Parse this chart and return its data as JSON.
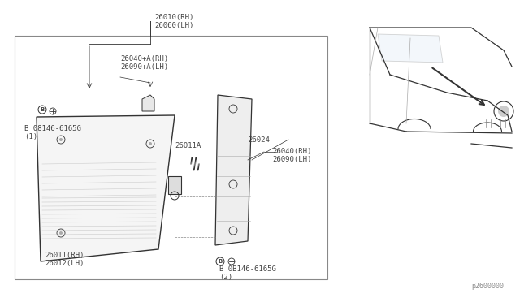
{
  "bg_color": "#ffffff",
  "border_color": "#aaaaaa",
  "line_color": "#333333",
  "text_color": "#444444",
  "title_ref": "26010(RH)\n26060(LH)",
  "label1": "26040+A(RH)\n26090+A(LH)",
  "label2": "B 08146-6165G\n(1)",
  "label3": "26011A",
  "label4": "26024",
  "label5": "26040(RH)\n26090(LH)",
  "label6": "26011(RH)\n26012(LH)",
  "label7": "B 0B146-6165G\n(2)",
  "ref_code": "p2600000",
  "figsize": [
    6.4,
    3.72
  ],
  "dpi": 100
}
